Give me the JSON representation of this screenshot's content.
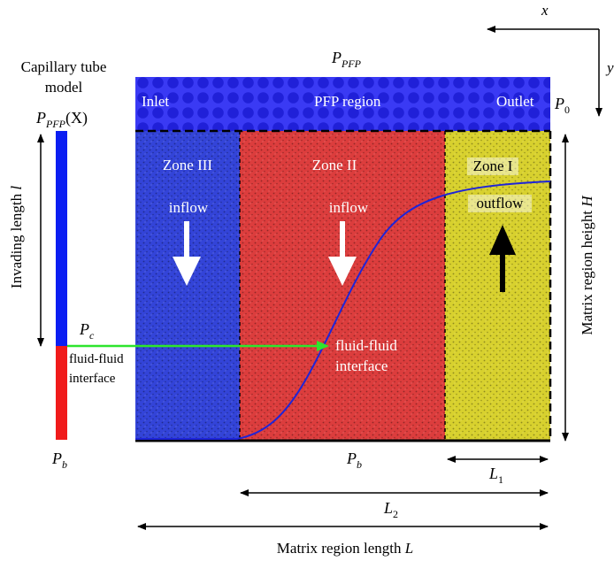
{
  "colors": {
    "inlet_band": "#2c2cf2",
    "zone3": "#2f3fd6",
    "zone2": "#dc3b3b",
    "zone1": "#d9d22c",
    "tube_upper": "#0b1ef2",
    "tube_lower": "#f01b1b",
    "interface_curve": "#1e24d8",
    "pc_arrow": "#2de52d"
  },
  "axes": {
    "x_label": "x",
    "y_label": "y"
  },
  "tube": {
    "title_line1": "Capillary tube",
    "title_line2": "model",
    "top_pressure": {
      "main": "P",
      "sub": "PFP",
      "arg": "(X)"
    },
    "bottom_pressure": {
      "main": "P",
      "sub": "b"
    },
    "invading_length": {
      "text": "Invading length ",
      "symbol": "l"
    },
    "pc": {
      "main": "P",
      "sub": "c"
    },
    "interface_line1": "fluid-fluid",
    "interface_line2": "interface"
  },
  "top_pressure": {
    "main": "P",
    "sub": "PFP"
  },
  "band": {
    "inlet": "Inlet",
    "pfp_region": "PFP region",
    "outlet": "Outlet",
    "p0": {
      "main": "P",
      "sub": "0"
    }
  },
  "zones": {
    "zone3": {
      "label": "Zone III",
      "flow": "inflow"
    },
    "zone2": {
      "label": "Zone II",
      "flow": "inflow"
    },
    "zone1": {
      "label": "Zone I",
      "flow": "outflow"
    }
  },
  "interface": {
    "line1": "fluid-fluid",
    "line2": "interface"
  },
  "bottom_pressure": {
    "main": "P",
    "sub": "b"
  },
  "height": {
    "text": "Matrix region height ",
    "symbol": "H"
  },
  "dims": {
    "l1": {
      "main": "L",
      "sub": "1"
    },
    "l2": {
      "main": "L",
      "sub": "2"
    },
    "length": {
      "text": "Matrix region length ",
      "symbol": "L"
    }
  }
}
